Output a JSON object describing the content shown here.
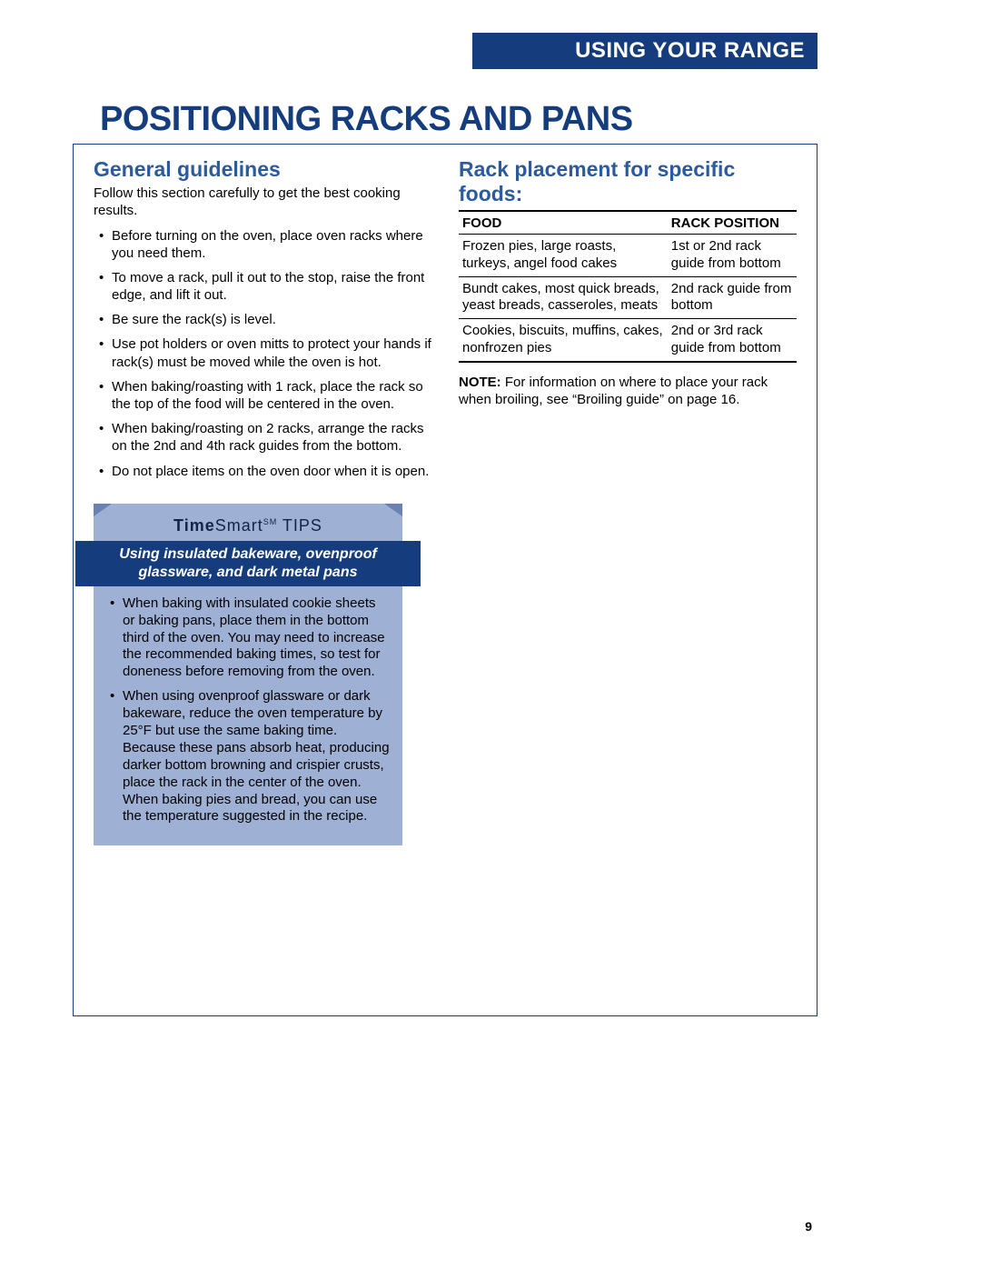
{
  "header": {
    "section_label": "USING YOUR RANGE"
  },
  "title": "POSITIONING RACKS AND PANS",
  "left": {
    "heading": "General guidelines",
    "intro": "Follow this section carefully to get the best cooking results.",
    "items": [
      "Before turning on the oven, place oven racks where you need them.",
      "To move a rack, pull it out to the stop, raise the front edge, and lift it out.",
      "Be sure the rack(s) is level.",
      "Use pot holders or oven mitts to protect your hands if rack(s) must be moved while the oven is hot.",
      "When baking/roasting with 1 rack, place the rack so the top of the food will be centered in the oven.",
      "When baking/roasting on 2 racks, arrange the racks on the 2nd and 4th rack guides from the bottom.",
      "Do not place items on the oven door when it is open."
    ]
  },
  "tips": {
    "logo_bold": "Time",
    "logo_rest": "Smart",
    "logo_sm": "SM",
    "logo_tips": " TIPS",
    "subheading": "Using insulated bakeware, ovenproof glassware, and dark metal pans",
    "items": [
      "When baking with insulated cookie sheets or baking pans, place them in the bottom third of the oven. You may need to increase the recommended baking times, so test for doneness before removing from the oven.",
      "When using ovenproof glassware or dark bakeware, reduce the oven temperature by 25°F but use the same baking time. Because these pans absorb heat, producing darker bottom browning and crispier crusts, place the rack in the center of the oven. When baking pies and bread, you can use the temperature suggested in the recipe."
    ]
  },
  "right": {
    "heading": "Rack placement for specific foods:",
    "table": {
      "col1": "FOOD",
      "col2": "RACK POSITION",
      "rows": [
        {
          "food": "Frozen pies, large roasts, turkeys, angel food cakes",
          "pos": "1st or 2nd rack guide from bottom"
        },
        {
          "food": "Bundt cakes, most quick breads, yeast breads, casseroles, meats",
          "pos": "2nd rack guide from bottom"
        },
        {
          "food": "Cookies, biscuits, muffins, cakes, nonfrozen pies",
          "pos": "2nd or 3rd rack guide from bottom"
        }
      ]
    },
    "note_label": "NOTE:",
    "note_text": " For information on where to place your rack when broiling, see “Broiling guide” on page 16."
  },
  "page_number": "9",
  "colors": {
    "deep_blue": "#153d7d",
    "mid_blue": "#2b5a9e",
    "box_blue": "#9eb0d3"
  }
}
